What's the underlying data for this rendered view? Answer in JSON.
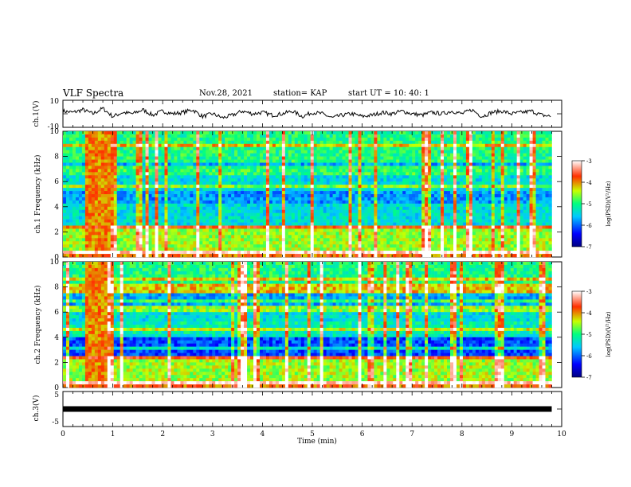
{
  "header": {
    "title": "VLF Spectra",
    "date": "Nov.28, 2021",
    "station": "station= KAP",
    "start": "start  UT =   10: 40: 1"
  },
  "chart_data": [
    {
      "type": "line",
      "panel": "ch1-waveform",
      "ylabel": "ch.1(V)",
      "ylim": [
        -10,
        10
      ],
      "yticks": [
        "10",
        "-10"
      ],
      "color": "#000000",
      "series": [
        {
          "x": [
            0.0,
            0.2,
            0.4,
            0.6,
            0.8,
            1.0,
            1.2,
            1.4,
            1.6,
            1.8,
            2.0,
            2.2,
            2.4,
            2.6,
            2.8,
            3.0,
            3.2,
            3.4,
            3.6,
            3.8,
            4.0,
            4.2,
            4.4,
            4.6,
            4.8,
            5.0,
            5.2,
            5.4,
            5.6,
            5.8,
            6.0,
            6.2,
            6.4,
            6.6,
            6.8,
            7.0,
            7.2,
            7.4,
            7.6,
            7.8,
            8.0,
            8.2,
            8.4,
            8.6,
            8.8,
            9.0,
            9.2,
            9.4,
            9.6,
            9.8
          ],
          "values": [
            2,
            1,
            3,
            0,
            4,
            -2,
            1,
            0,
            3,
            -1,
            2,
            0,
            1,
            3,
            -2,
            0,
            -3,
            -1,
            2,
            0,
            1,
            -1,
            0,
            2,
            -2,
            1,
            0,
            -3,
            -1,
            0,
            -2,
            -1,
            1,
            0,
            2,
            0,
            -1,
            1,
            0,
            2,
            0,
            3,
            -2,
            1,
            2,
            0,
            1,
            2,
            -1,
            -2
          ]
        }
      ]
    },
    {
      "type": "heatmap",
      "panel": "ch1-spectrogram",
      "ylabel": "ch.1\nFrequency (kHz)",
      "ylim": [
        0,
        10
      ],
      "yticks": [
        "0",
        "2",
        "4",
        "6",
        "8",
        "10"
      ],
      "colorbar_label": "log(PSD)(V²/Hz)",
      "colorbar_ticks": [
        "-3",
        "-4",
        "-5",
        "-6",
        "-7"
      ],
      "colorbar_range": [
        -7,
        -3
      ]
    },
    {
      "type": "heatmap",
      "panel": "ch2-spectrogram",
      "ylabel": "ch.2\nFrequency (kHz)",
      "ylim": [
        0,
        10
      ],
      "yticks": [
        "0",
        "2",
        "4",
        "6",
        "8",
        "10"
      ],
      "colorbar_label": "log(PSD)(V²/Hz)",
      "colorbar_ticks": [
        "-3",
        "-4",
        "-5",
        "-6",
        "-7"
      ],
      "colorbar_range": [
        -7,
        -3
      ]
    },
    {
      "type": "line",
      "panel": "ch3-signal",
      "ylabel": "ch.3(V)",
      "ylim": [
        -5,
        5
      ],
      "yticks": [
        "5",
        "-5"
      ],
      "series": [
        {
          "x": [
            0,
            9.8
          ],
          "values": [
            0,
            0
          ]
        }
      ]
    }
  ],
  "xaxis": {
    "label": "Time  (min)",
    "range": [
      0,
      10
    ],
    "ticks": [
      "0",
      "1",
      "2",
      "3",
      "4",
      "5",
      "6",
      "7",
      "8",
      "9",
      "10"
    ]
  }
}
